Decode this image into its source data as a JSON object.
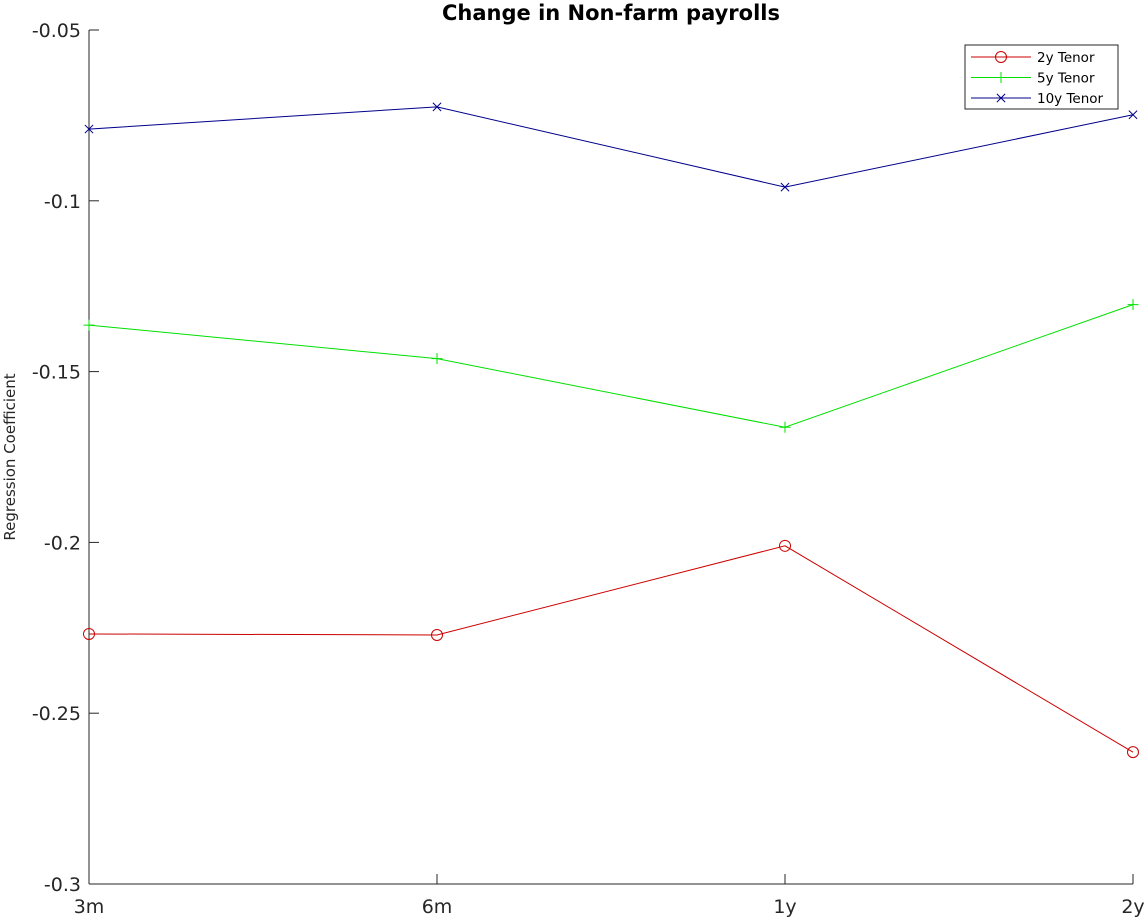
{
  "chart_data": {
    "type": "line",
    "title": "Change in Non-farm payrolls",
    "xlabel": "",
    "ylabel": "Regression Coefficient",
    "categories": [
      "3m",
      "6m",
      "1y",
      "2y"
    ],
    "ylim": [
      -0.3,
      -0.05
    ],
    "yticks": [
      -0.05,
      -0.1,
      -0.15,
      -0.2,
      -0.25,
      -0.3
    ],
    "ytick_labels": [
      "-0.05",
      "-0.1",
      "-0.15",
      "-0.2",
      "-0.25",
      "-0.3"
    ],
    "grid": false,
    "legend_position": "top-right",
    "series": [
      {
        "name": "2y Tenor",
        "color": "#cc0000",
        "marker": "circle",
        "values": [
          -0.2268,
          -0.2271,
          -0.201,
          -0.2614
        ]
      },
      {
        "name": "5y Tenor",
        "color": "#00e000",
        "marker": "plus",
        "values": [
          -0.1364,
          -0.1462,
          -0.1663,
          -0.1304
        ]
      },
      {
        "name": "10y Tenor",
        "color": "#00008b",
        "marker": "x",
        "values": [
          -0.079,
          -0.0725,
          -0.096,
          -0.0748
        ]
      }
    ]
  }
}
